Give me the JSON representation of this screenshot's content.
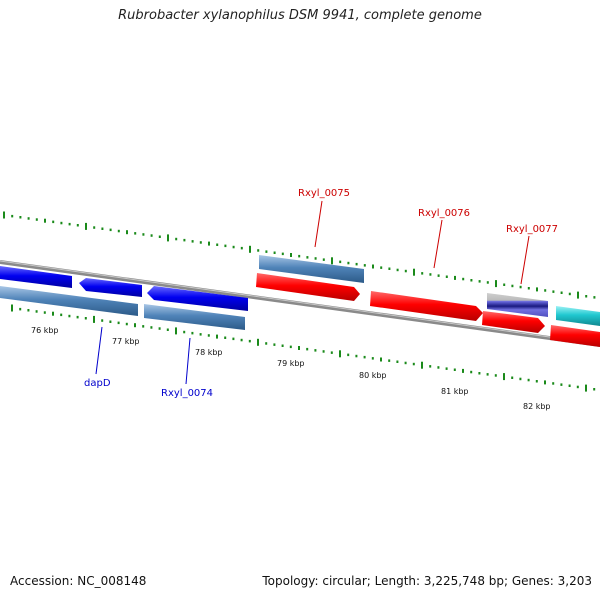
{
  "title": "Rubrobacter xylanophilus DSM 9941, complete genome",
  "footer": {
    "accession": "Accession: NC_008148",
    "stats": "Topology: circular; Length: 3,225,748 bp; Genes: 3,203"
  },
  "colors": {
    "tick": "#1a8a1a",
    "backbone": "#888888",
    "forward_cds": "#ff1a1a",
    "reverse_cds": "#1a1aff",
    "steel_blue": "#4f83b8",
    "cyan": "#20c8d0",
    "navy": "#1a1a80",
    "grey": "#bbbbbb",
    "label_red": "#cc0000",
    "label_blue": "#0000cc"
  },
  "scale_labels": [
    "76 kbp",
    "77 kbp",
    "78 kbp",
    "79 kbp",
    "80 kbp",
    "81 kbp",
    "82 kbp"
  ],
  "gene_labels": {
    "top": [
      "Rxyl_0075",
      "Rxyl_0076",
      "Rxyl_0077"
    ],
    "bottom": [
      "dapD",
      "Rxyl_0074"
    ]
  }
}
